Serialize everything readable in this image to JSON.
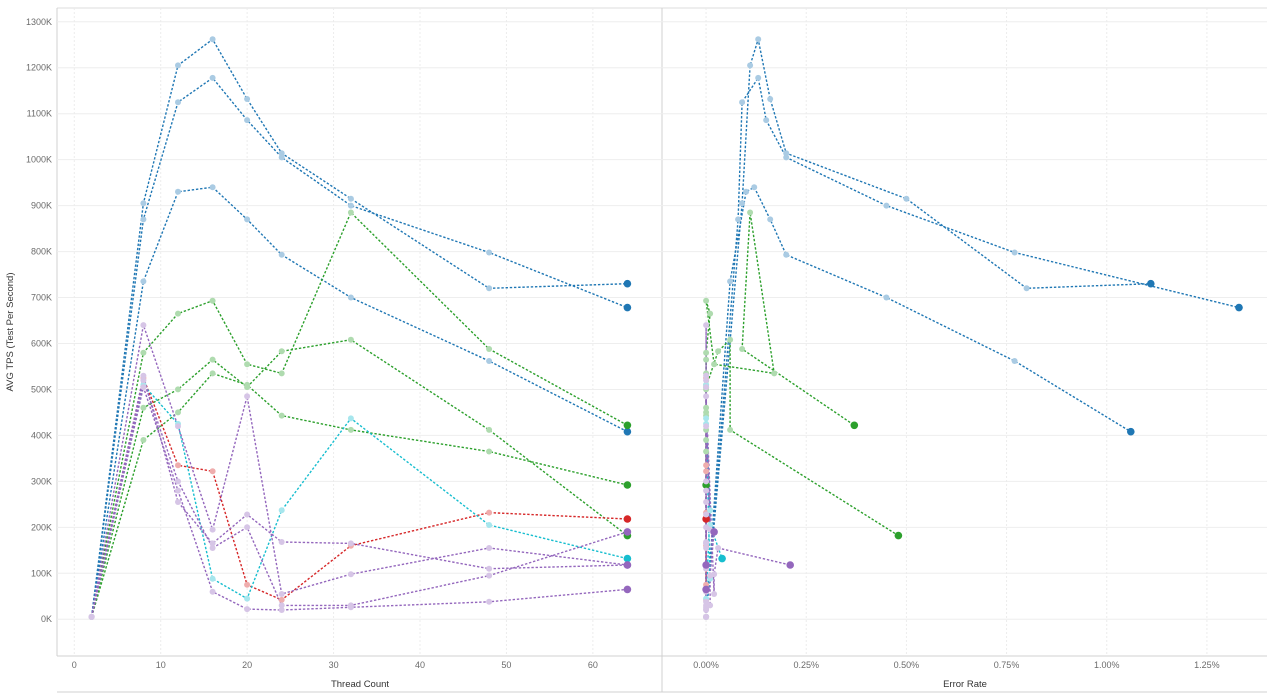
{
  "chart_data": {
    "type": "line",
    "ylabel": "AVG TPS (Test Per Second)",
    "ylim": [
      -80000,
      1330000
    ],
    "yticks": [
      0,
      100000,
      200000,
      300000,
      400000,
      500000,
      600000,
      700000,
      800000,
      900000,
      1000000,
      1100000,
      1200000,
      1300000
    ],
    "ytick_labels": [
      "0K",
      "100K",
      "200K",
      "300K",
      "400K",
      "500K",
      "600K",
      "700K",
      "800K",
      "900K",
      "1000K",
      "1100K",
      "1200K",
      "1300K"
    ],
    "grid": true,
    "panels": [
      {
        "xlabel": "Thread Count",
        "xlim": [
          -2,
          68
        ],
        "xticks": [
          0,
          10,
          20,
          30,
          40,
          50,
          60
        ],
        "xtick_labels": [
          "0",
          "10",
          "20",
          "30",
          "40",
          "50",
          "60"
        ]
      },
      {
        "xlabel": "Error Rate",
        "xlim": [
          -0.0011,
          0.014
        ],
        "xticks": [
          0,
          0.0025,
          0.005,
          0.0075,
          0.01,
          0.0125
        ],
        "xtick_labels": [
          "0.00%",
          "0.25%",
          "0.50%",
          "0.75%",
          "1.00%",
          "1.25%"
        ]
      }
    ],
    "series": [
      {
        "color": "#1f77b4",
        "x": [
          2,
          8,
          12,
          16,
          20,
          24,
          32,
          48,
          64
        ],
        "y": [
          5000,
          905000,
          1205000,
          1262000,
          1132000,
          1014000,
          915000,
          720000,
          730000
        ],
        "err": [
          0,
          0.0009,
          0.0011,
          0.0013,
          0.0016,
          0.002,
          0.005,
          0.008,
          0.0111
        ]
      },
      {
        "color": "#1f77b4",
        "x": [
          2,
          8,
          12,
          16,
          20,
          24,
          32,
          48,
          64
        ],
        "y": [
          5000,
          870000,
          1125000,
          1178000,
          1086000,
          1005000,
          900000,
          798000,
          678000
        ],
        "err": [
          0,
          0.0008,
          0.0009,
          0.0013,
          0.0015,
          0.002,
          0.0045,
          0.0077,
          0.0133
        ]
      },
      {
        "color": "#1f77b4",
        "x": [
          2,
          8,
          12,
          16,
          20,
          24,
          32,
          48,
          64
        ],
        "y": [
          5000,
          735000,
          930000,
          940000,
          870000,
          793000,
          700000,
          562000,
          408000
        ],
        "err": [
          0,
          0.0006,
          0.001,
          0.0012,
          0.0016,
          0.002,
          0.0045,
          0.0077,
          0.0106
        ]
      },
      {
        "color": "#2ca02c",
        "x": [
          2,
          8,
          12,
          16,
          20,
          24,
          32,
          48,
          64
        ],
        "y": [
          5000,
          580000,
          665000,
          693000,
          555000,
          535000,
          885000,
          588000,
          422000
        ],
        "err": [
          0,
          0,
          0.0001,
          0,
          0.0002,
          0.0017,
          0.0011,
          0.0009,
          0.0037
        ]
      },
      {
        "color": "#2ca02c",
        "x": [
          2,
          8,
          12,
          16,
          20,
          24,
          32,
          48,
          64
        ],
        "y": [
          5000,
          460000,
          500000,
          565000,
          505000,
          583000,
          608000,
          412000,
          182000
        ],
        "err": [
          0,
          0,
          0,
          0,
          0,
          0.0003,
          0.0006,
          0.0006,
          0.0048
        ]
      },
      {
        "color": "#2ca02c",
        "x": [
          2,
          8,
          12,
          16,
          20,
          24,
          32,
          48,
          64
        ],
        "y": [
          5000,
          390000,
          450000,
          535000,
          510000,
          443000,
          412000,
          365000,
          292000
        ],
        "err": [
          0,
          0,
          0,
          0,
          0,
          0,
          0,
          0,
          0
        ]
      },
      {
        "color": "#d62728",
        "x": [
          2,
          8,
          12,
          16,
          20,
          24,
          32,
          48,
          64
        ],
        "y": [
          5000,
          525000,
          335000,
          322000,
          75000,
          42000,
          160000,
          232000,
          218000
        ],
        "err": [
          0,
          0,
          0,
          0,
          0,
          0,
          0,
          0,
          0
        ]
      },
      {
        "color": "#17becf",
        "x": [
          2,
          8,
          12,
          16,
          20,
          24,
          32,
          48,
          64
        ],
        "y": [
          5000,
          510000,
          425000,
          88000,
          45000,
          237000,
          437000,
          205000,
          132000
        ],
        "err": [
          0,
          0,
          0,
          0.0001,
          0,
          0.0001,
          0,
          0.0001,
          0.0004
        ]
      },
      {
        "color": "#9467bd",
        "x": [
          2,
          8,
          12,
          16,
          20,
          24,
          32,
          48,
          64
        ],
        "y": [
          5000,
          640000,
          420000,
          195000,
          485000,
          55000,
          98000,
          155000,
          118000
        ],
        "err": [
          0,
          0,
          0,
          0.0001,
          0,
          0.0002,
          0.0002,
          0.0003,
          0.0021
        ]
      },
      {
        "color": "#9467bd",
        "x": [
          2,
          8,
          12,
          16,
          20,
          24,
          32,
          48,
          64
        ],
        "y": [
          5000,
          530000,
          255000,
          165000,
          228000,
          168000,
          165000,
          110000,
          118000
        ],
        "err": [
          0,
          0,
          0,
          0,
          0,
          0,
          0,
          0,
          0
        ]
      },
      {
        "color": "#9467bd",
        "x": [
          2,
          8,
          12,
          16,
          20,
          24,
          32,
          48,
          64
        ],
        "y": [
          5000,
          520000,
          300000,
          155000,
          200000,
          30000,
          30000,
          95000,
          190000
        ],
        "err": [
          0,
          0,
          0,
          0,
          0,
          0,
          0.0001,
          0.0001,
          0.0002
        ]
      },
      {
        "color": "#9467bd",
        "x": [
          2,
          8,
          12,
          16,
          20,
          24,
          32,
          48,
          64
        ],
        "y": [
          5000,
          505000,
          280000,
          60000,
          22000,
          20000,
          26000,
          38000,
          65000
        ],
        "err": [
          0,
          0,
          0,
          0,
          0,
          0,
          0,
          0,
          0
        ]
      }
    ]
  }
}
